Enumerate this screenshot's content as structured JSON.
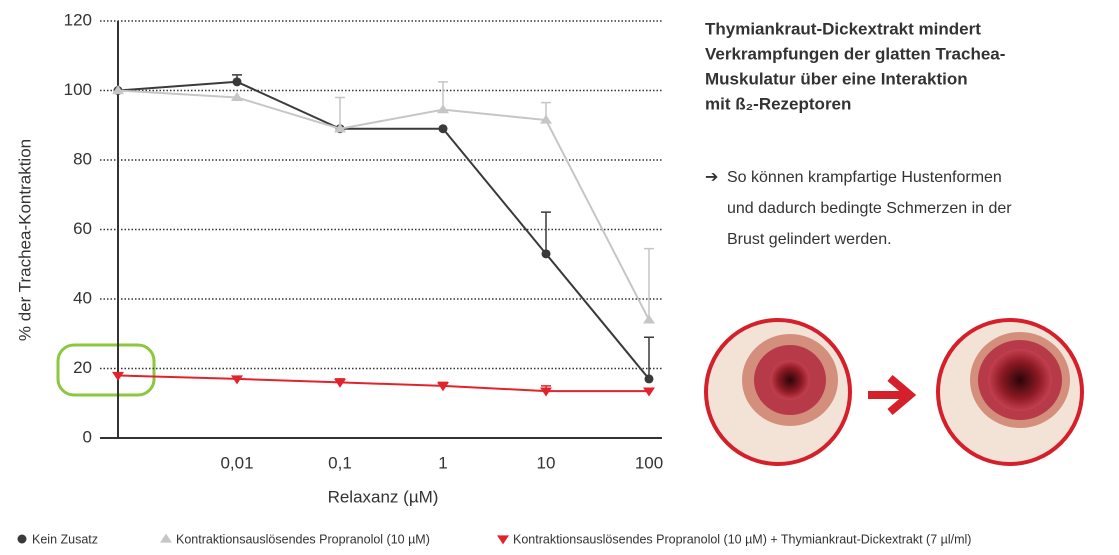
{
  "chart_data": {
    "type": "line",
    "xlabel": "Relaxanz (µM)",
    "ylabel": "% der Trachea-Kontraktion",
    "categories": [
      null,
      "0,01",
      "0,1",
      "1",
      "10",
      "100"
    ],
    "ylim": [
      0,
      120
    ],
    "yticks": [
      0,
      20,
      40,
      60,
      80,
      100,
      120
    ],
    "grid": true,
    "series": [
      {
        "name": "Kein Zusatz",
        "color": "#3a3a3a",
        "marker": "circle",
        "values": [
          100,
          102.5,
          89,
          89,
          53,
          17
        ],
        "errors": [
          null,
          2,
          null,
          null,
          12,
          12
        ]
      },
      {
        "name": "Kontraktionsauslösendes Propranolol (10 µM)",
        "color": "#c6c6c6",
        "marker": "triangle-up",
        "values": [
          100,
          98,
          89,
          94.5,
          91.5,
          34
        ],
        "errors": [
          null,
          null,
          9,
          8,
          5,
          20.5
        ]
      },
      {
        "name": "Kontraktionsauslösendes Propranolol (10 µM) + Thymiankraut-Dickextrakt (7 µl/ml)",
        "color": "#e3232c",
        "marker": "triangle-down",
        "values": [
          18,
          17,
          16,
          15,
          13.5,
          13.5
        ],
        "errors": [
          null,
          null,
          1,
          1,
          1.5,
          null
        ]
      }
    ]
  },
  "panel": {
    "heading_lines": [
      "Thymiankraut-Dickextrakt mindert",
      "Verkrampfungen der glatten Trachea-",
      "Muskulatur über eine Interaktion",
      "mit ß₂-Rezeptoren"
    ],
    "body_lines": [
      "So können krampfartige Hustenformen",
      "und dadurch bedingte Schmerzen in der",
      "Brust gelindert werden."
    ]
  }
}
